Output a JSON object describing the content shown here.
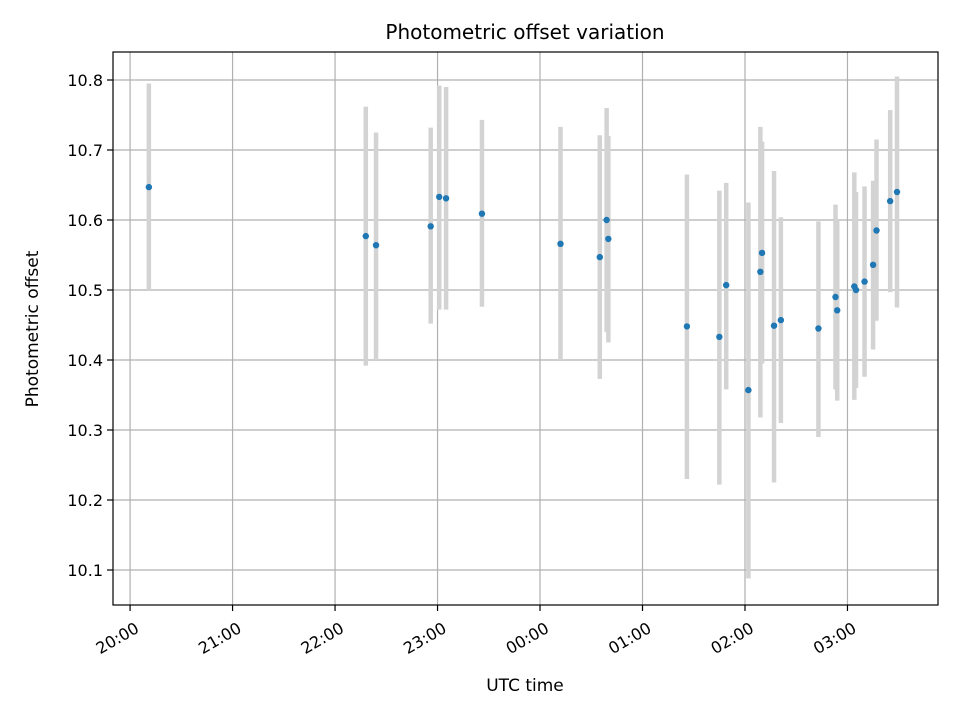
{
  "chart_data": {
    "type": "scatter",
    "title": "Photometric offset variation",
    "xlabel": "UTC time",
    "ylabel": "Photometric offset",
    "x_type": "time",
    "x_unit": "hours (UTC)",
    "xlim": [
      "19:50",
      "03:53"
    ],
    "ylim": [
      10.05,
      10.84
    ],
    "x_ticks": [
      "20:00",
      "21:00",
      "22:00",
      "23:00",
      "00:00",
      "01:00",
      "02:00",
      "03:00"
    ],
    "y_ticks": [
      "10.1",
      "10.2",
      "10.3",
      "10.4",
      "10.5",
      "10.6",
      "10.7",
      "10.8"
    ],
    "grid": true,
    "point_color": "#1f77b4",
    "errorbar_color": "#d3d3d3",
    "points": [
      {
        "time": "20:11",
        "y": 10.647,
        "y_low": 10.5,
        "y_high": 10.795
      },
      {
        "time": "22:18",
        "y": 10.577,
        "y_low": 10.392,
        "y_high": 10.762
      },
      {
        "time": "22:24",
        "y": 10.564,
        "y_low": 10.4,
        "y_high": 10.725
      },
      {
        "time": "22:56",
        "y": 10.591,
        "y_low": 10.452,
        "y_high": 10.732
      },
      {
        "time": "23:01",
        "y": 10.633,
        "y_low": 10.472,
        "y_high": 10.792
      },
      {
        "time": "23:05",
        "y": 10.631,
        "y_low": 10.472,
        "y_high": 10.79
      },
      {
        "time": "23:26",
        "y": 10.609,
        "y_low": 10.476,
        "y_high": 10.743
      },
      {
        "time": "00:12",
        "y": 10.566,
        "y_low": 10.4,
        "y_high": 10.733
      },
      {
        "time": "00:35",
        "y": 10.547,
        "y_low": 10.373,
        "y_high": 10.721
      },
      {
        "time": "00:39",
        "y": 10.6,
        "y_low": 10.44,
        "y_high": 10.76
      },
      {
        "time": "00:40",
        "y": 10.573,
        "y_low": 10.425,
        "y_high": 10.72
      },
      {
        "time": "01:26",
        "y": 10.448,
        "y_low": 10.23,
        "y_high": 10.665
      },
      {
        "time": "01:45",
        "y": 10.433,
        "y_low": 10.222,
        "y_high": 10.642
      },
      {
        "time": "01:49",
        "y": 10.507,
        "y_low": 10.358,
        "y_high": 10.653
      },
      {
        "time": "02:02",
        "y": 10.357,
        "y_low": 10.088,
        "y_high": 10.625
      },
      {
        "time": "02:09",
        "y": 10.526,
        "y_low": 10.318,
        "y_high": 10.733
      },
      {
        "time": "02:10",
        "y": 10.553,
        "y_low": 10.395,
        "y_high": 10.712
      },
      {
        "time": "02:17",
        "y": 10.449,
        "y_low": 10.225,
        "y_high": 10.67
      },
      {
        "time": "02:21",
        "y": 10.457,
        "y_low": 10.31,
        "y_high": 10.604
      },
      {
        "time": "02:43",
        "y": 10.445,
        "y_low": 10.29,
        "y_high": 10.598
      },
      {
        "time": "02:53",
        "y": 10.49,
        "y_low": 10.358,
        "y_high": 10.622
      },
      {
        "time": "02:54",
        "y": 10.471,
        "y_low": 10.342,
        "y_high": 10.6
      },
      {
        "time": "03:04",
        "y": 10.505,
        "y_low": 10.343,
        "y_high": 10.668
      },
      {
        "time": "03:05",
        "y": 10.5,
        "y_low": 10.36,
        "y_high": 10.64
      },
      {
        "time": "03:10",
        "y": 10.512,
        "y_low": 10.376,
        "y_high": 10.648
      },
      {
        "time": "03:15",
        "y": 10.536,
        "y_low": 10.415,
        "y_high": 10.656
      },
      {
        "time": "03:17",
        "y": 10.585,
        "y_low": 10.456,
        "y_high": 10.715
      },
      {
        "time": "03:25",
        "y": 10.627,
        "y_low": 10.497,
        "y_high": 10.757
      },
      {
        "time": "03:29",
        "y": 10.64,
        "y_low": 10.475,
        "y_high": 10.805
      }
    ]
  }
}
